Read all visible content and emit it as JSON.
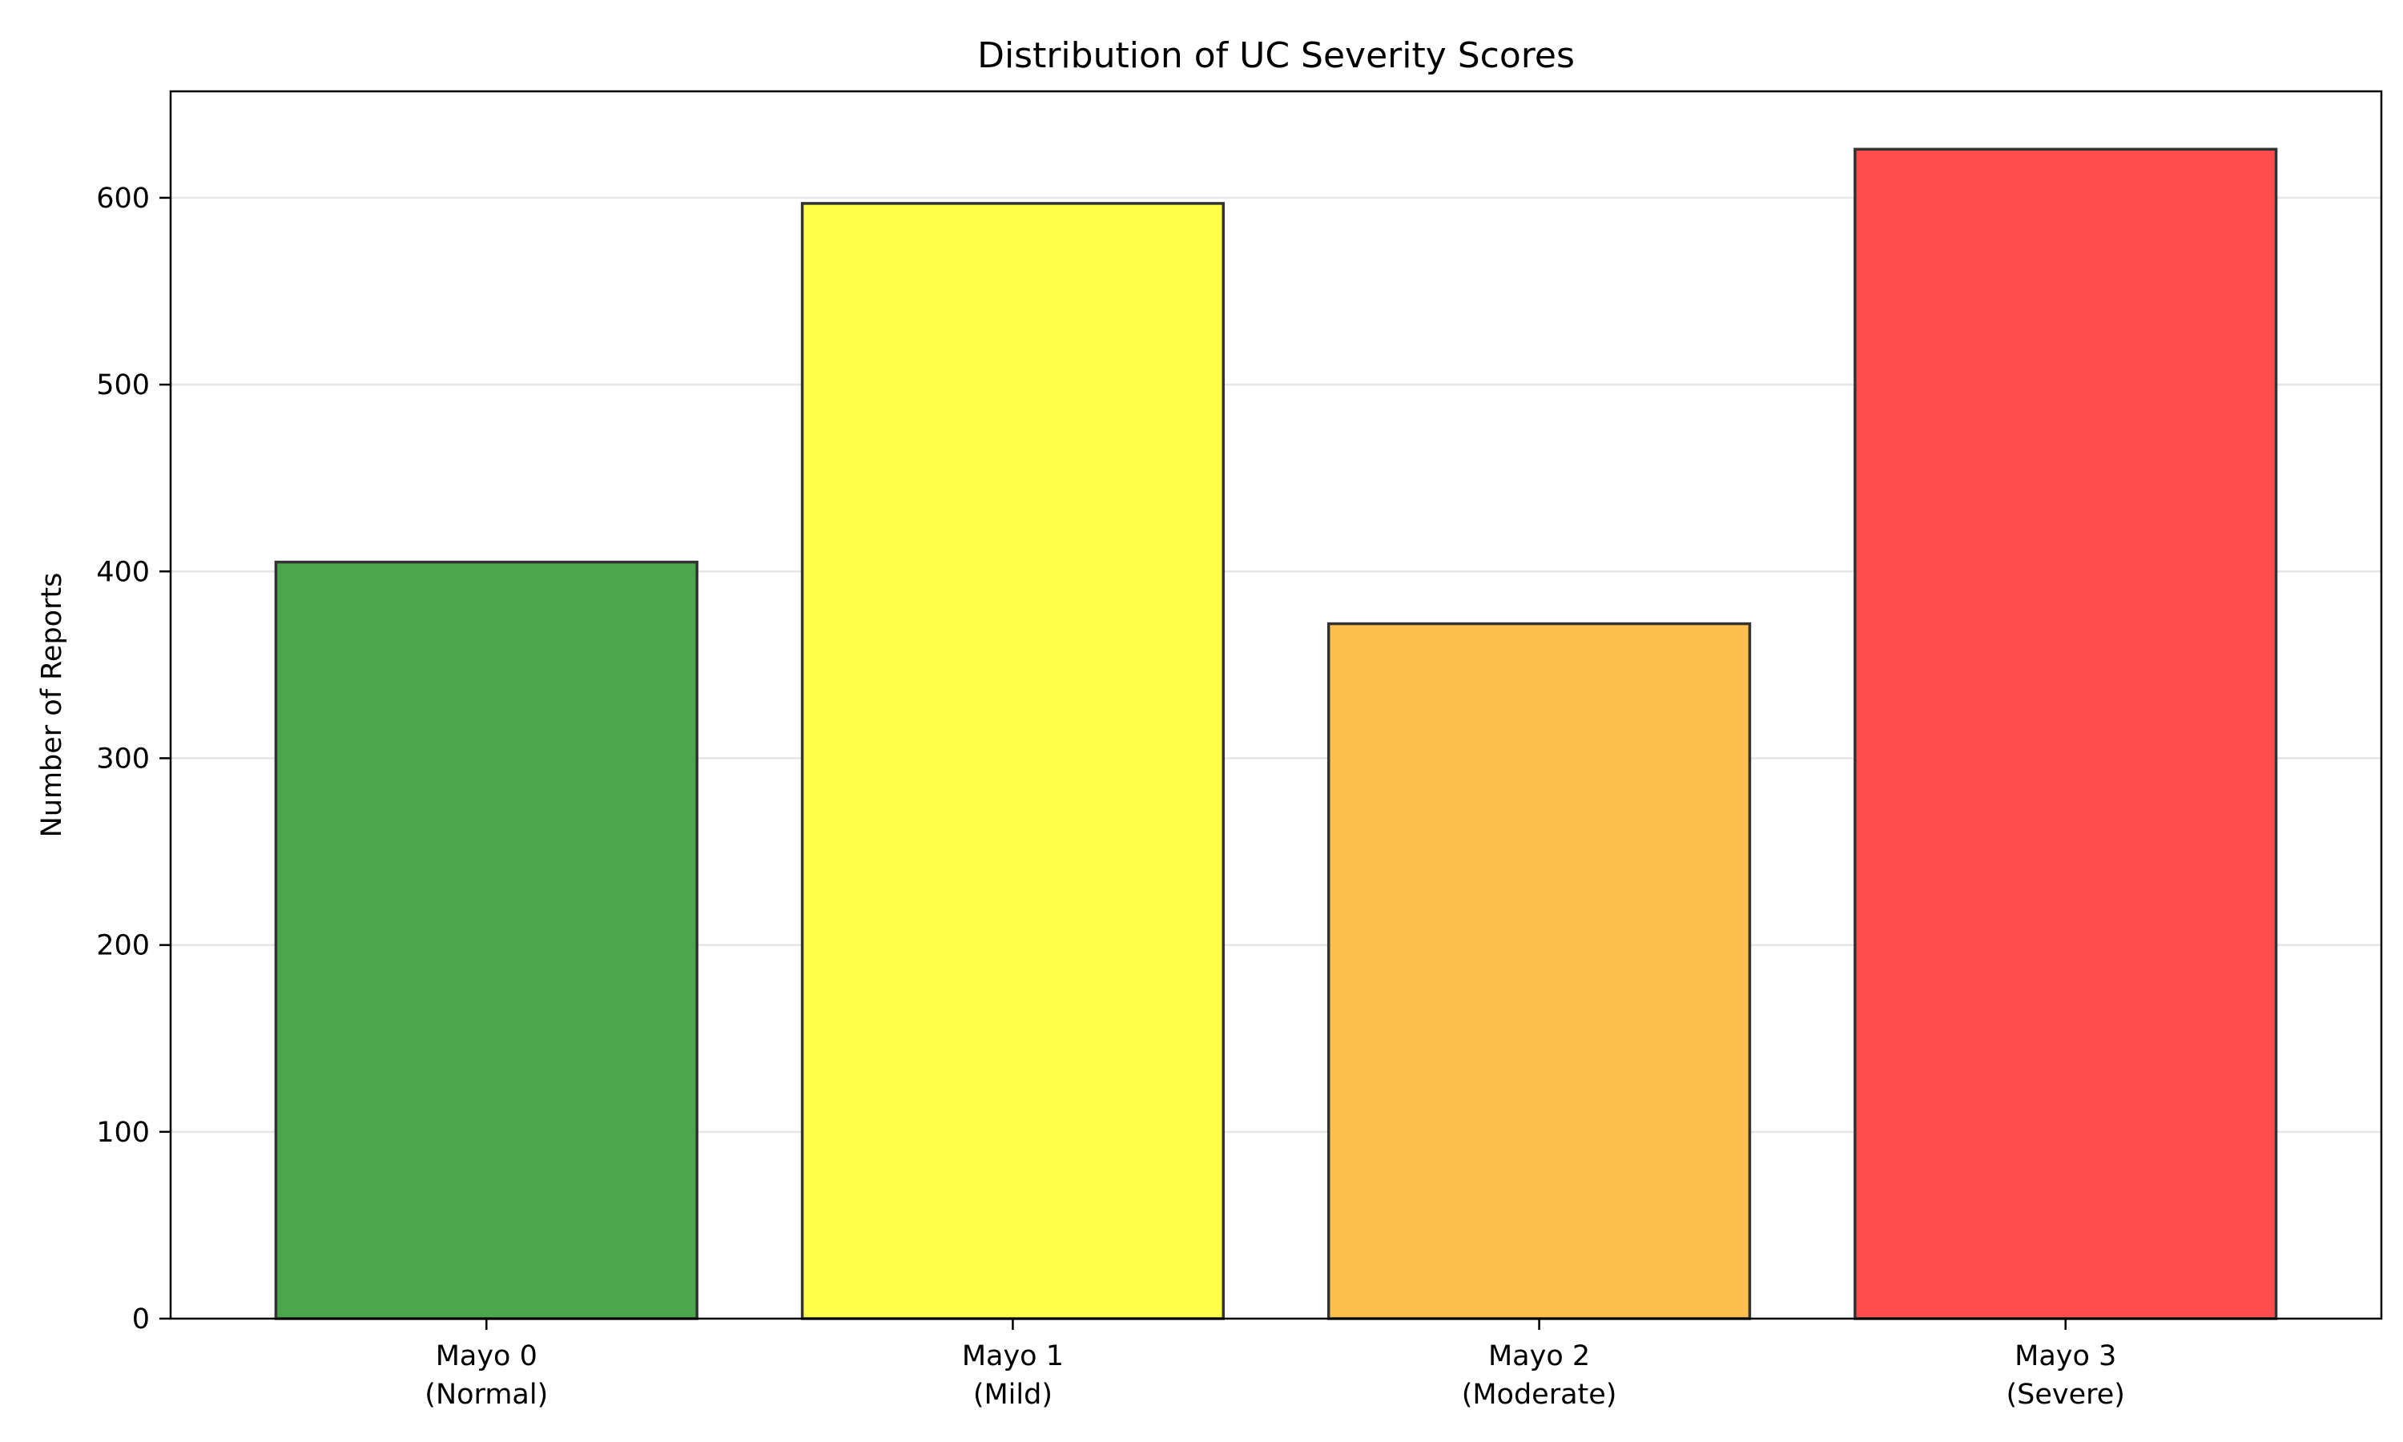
{
  "chart_data": {
    "type": "bar",
    "title": "Distribution of UC Severity Scores",
    "xlabel": "",
    "ylabel": "Number of Reports",
    "categories": [
      [
        "Mayo 0",
        "(Normal)"
      ],
      [
        "Mayo 1",
        "(Mild)"
      ],
      [
        "Mayo 2",
        "(Moderate)"
      ],
      [
        "Mayo 3",
        "(Severe)"
      ]
    ],
    "values": [
      405,
      597,
      372,
      626
    ],
    "colors": [
      "#4ca64c",
      "#ffff4c",
      "#ffbf4c",
      "#ff4c4c"
    ],
    "edge_color": "#333333",
    "ylim": [
      0,
      657
    ],
    "yticks": [
      0,
      100,
      200,
      300,
      400,
      500,
      600
    ],
    "grid": "y",
    "legend": "none"
  }
}
